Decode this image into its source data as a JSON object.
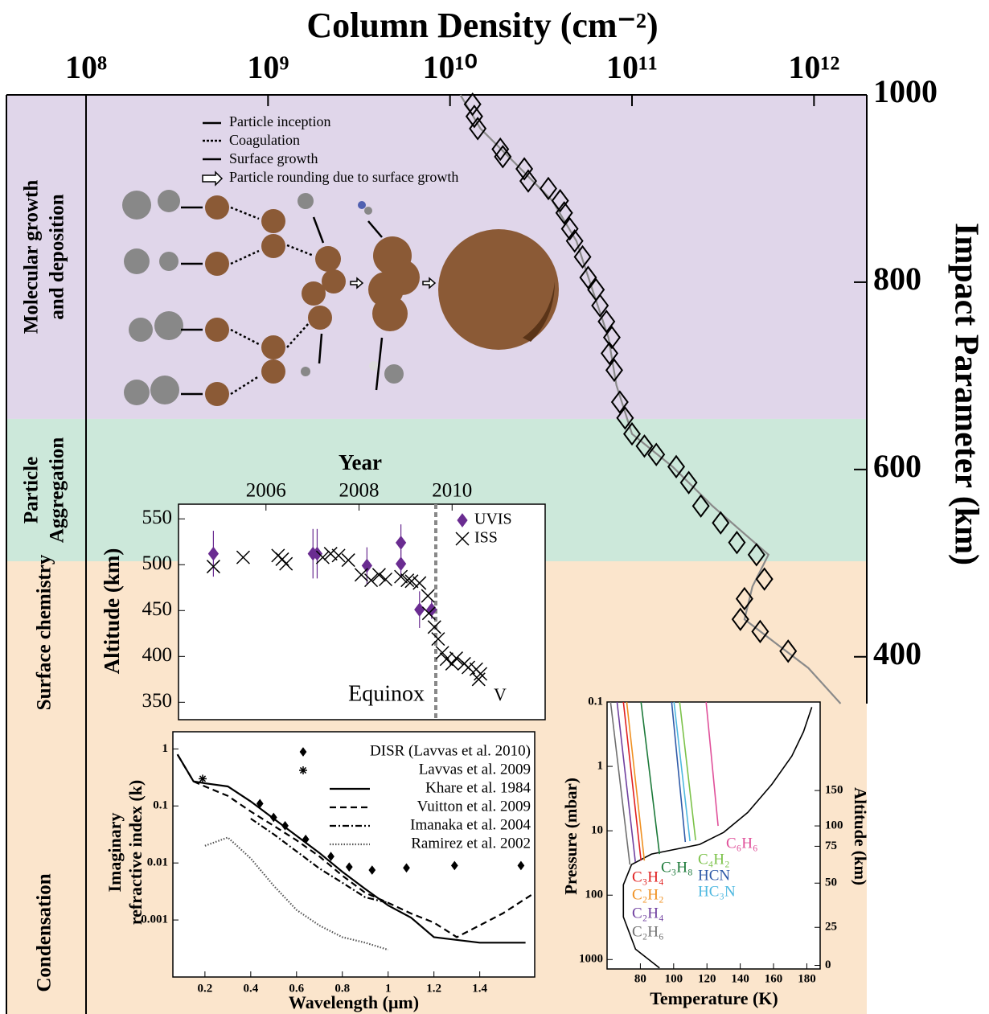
{
  "chart_data": [
    {
      "type": "scatter",
      "title": "Column Density (cm⁻²)",
      "ylabel": "Impact Parameter (km)",
      "xlog": true,
      "xlim": [
        100000000.0,
        1950000000000.0
      ],
      "xticks": [
        {
          "value": 100000000.0,
          "label": "10⁸"
        },
        {
          "value": 1000000000.0,
          "label": "10⁹"
        },
        {
          "value": 10000000000.0,
          "label": "10¹⁰"
        },
        {
          "value": 100000000000.0,
          "label": "10¹¹"
        },
        {
          "value": 1000000000000.0,
          "label": "10¹²"
        }
      ],
      "ylim": [
        350,
        1000
      ],
      "yticks": [
        400,
        600,
        800,
        1000
      ],
      "regions": [
        {
          "label": [
            "Molecular growth",
            "and deposition"
          ],
          "color": "#e0d6ea",
          "range": [
            654,
            1000
          ]
        },
        {
          "label": [
            "Particle",
            "Aggregation"
          ],
          "color": "#cce8da",
          "range": [
            502,
            654
          ]
        },
        {
          "label": [
            "Surface chemistry"
          ],
          "color": "#fbe5cc",
          "range": [
            350,
            502
          ]
        },
        {
          "label": [
            "Condensation"
          ],
          "color": "#fbe5cc"
        }
      ],
      "annotations": [
        "Particle inception",
        "Coagulation",
        "Surface growth",
        "Particle rounding due to surface growth"
      ],
      "series": [
        {
          "mode": "line",
          "color": "#8a8a8a",
          "x": [
            11400000000.0,
            14700000000.0,
            22000000000.0,
            36500000000.0,
            49500000000.0,
            60600000000.0,
            74200000000.0,
            82100000000.0,
            100000000000.0,
            167000000000.0,
            277000000000.0,
            562000000000.0,
            459000000000.0,
            415000000000.0,
            621000000000.0,
            931000000000.0,
            1400000000000.0
          ],
          "values": [
            1000,
            964,
            930,
            887,
            844,
            792,
            741,
            690,
            638,
            603,
            561,
            509,
            475,
            440,
            414,
            388,
            350
          ]
        },
        {
          "mode": "markers",
          "marker": "open-diamond",
          "color": "#000000",
          "x": [
            13300000000.0,
            13600000000.0,
            14200000000.0,
            18900000000.0,
            19500000000.0,
            25600000000.0,
            26900000000.0,
            34700000000.0,
            40300000000.0,
            42400000000.0,
            45500000000.0,
            48400000000.0,
            53500000000.0,
            57400000000.0,
            63400000000.0,
            66700000000.0,
            72400000000.0,
            77500000000.0,
            75200000000.0,
            79900000000.0,
            85700000000.0,
            91600000000.0,
            100000000000.0,
            117000000000.0,
            136000000000.0,
            175000000000.0,
            205000000000.0,
            239000000000.0,
            307000000000.0,
            377000000000.0,
            483000000000.0,
            534000000000.0,
            415000000000.0,
            394000000000.0,
            506000000000.0,
            721000000000.0
          ],
          "values": [
            990,
            977,
            964,
            942,
            934,
            921,
            908,
            900,
            887,
            874,
            857,
            844,
            827,
            805,
            792,
            775,
            758,
            741,
            724,
            706,
            672,
            655,
            638,
            625,
            616,
            603,
            586,
            561,
            543,
            522,
            509,
            483,
            462,
            440,
            427,
            406
          ]
        }
      ]
    },
    {
      "type": "scatter",
      "xlabel": "Year",
      "ylabel": "Altitude (km)",
      "xlim": [
        2004.12,
        2012
      ],
      "xticks": [
        2006,
        2008,
        2010
      ],
      "ylim": [
        331,
        566
      ],
      "yticks": [
        350,
        400,
        450,
        500,
        550
      ],
      "annotations": [
        {
          "text": "Equinox",
          "x": 2009.65
        },
        {
          "text": "V"
        }
      ],
      "series": [
        {
          "name": "UVIS",
          "mode": "markers",
          "marker": "diamond",
          "color": "#6a2c91",
          "x": [
            2004.87,
            2007.01,
            2007.1,
            2008.17,
            2008.9,
            2008.9,
            2009.3,
            2009.56
          ],
          "values": [
            512,
            512,
            512,
            499,
            501,
            524,
            451,
            451
          ],
          "errors": [
            25,
            27,
            27,
            20,
            15,
            20,
            20,
            10
          ]
        },
        {
          "name": "ISS",
          "mode": "markers",
          "marker": "x",
          "color": "#000000",
          "x": [
            2004.87,
            2005.51,
            2006.26,
            2006.35,
            2006.43,
            2007.22,
            2007.39,
            2007.56,
            2007.77,
            2008.05,
            2008.26,
            2008.43,
            2008.57,
            2008.9,
            2009.04,
            2009.13,
            2009.3,
            2009.48,
            2009.5,
            2009.62,
            2009.7,
            2009.79,
            2009.88,
            2010.0,
            2010.09,
            2010.26,
            2010.35,
            2010.52,
            2010.61,
            2010.57
          ],
          "values": [
            498,
            508,
            510,
            506,
            501,
            508,
            512,
            510,
            505,
            489,
            483,
            489,
            484,
            487,
            483,
            482,
            480,
            466,
            447,
            432,
            419,
            404,
            397,
            392,
            398,
            392,
            388,
            386,
            381,
            375
          ]
        }
      ]
    },
    {
      "type": "line",
      "xlabel": "Wavelength (μm)",
      "ylabel": [
        "Imaginary",
        "refractive index (k)"
      ],
      "xlim": [
        0.06,
        1.64
      ],
      "xticks": [
        0.2,
        0.4,
        0.6,
        0.8,
        1.0,
        1.2,
        1.4
      ],
      "ylog": true,
      "ylim": [
        0.0001,
        2
      ],
      "yticks": [
        0.001,
        0.01,
        0.1,
        1
      ],
      "series": [
        {
          "name": "DISR (Lavvas et al. 2010)",
          "mode": "markers",
          "marker": "diamond",
          "color": "#000000",
          "x": [
            0.44,
            0.5,
            0.55,
            0.64,
            0.75,
            0.83,
            0.93,
            1.08,
            1.29,
            1.58
          ],
          "values": [
            0.11,
            0.063,
            0.045,
            0.026,
            0.013,
            0.0085,
            0.0075,
            0.0082,
            0.009,
            0.009
          ]
        },
        {
          "name": "Lavvas et al. 2009",
          "mode": "markers",
          "marker": "star",
          "color": "#000000",
          "x": [
            0.19
          ],
          "values": [
            0.3
          ]
        },
        {
          "name": "Khare et al. 1984",
          "mode": "line",
          "dash": "solid",
          "color": "#000000",
          "x": [
            0.08,
            0.15,
            0.2,
            0.3,
            0.4,
            0.5,
            0.6,
            0.7,
            0.8,
            0.9,
            1.0,
            1.1,
            1.2,
            1.4,
            1.6
          ],
          "values": [
            0.8,
            0.27,
            0.25,
            0.22,
            0.12,
            0.06,
            0.03,
            0.015,
            0.007,
            0.0035,
            0.0018,
            0.0011,
            0.0005,
            0.0004,
            0.0004
          ]
        },
        {
          "name": "Vuitton et al. 2009",
          "mode": "line",
          "dash": "dashed",
          "color": "#000000",
          "x": [
            0.08,
            0.15,
            0.2,
            0.3,
            0.4,
            0.5,
            0.6,
            0.7,
            0.8,
            0.9,
            1.0,
            1.1,
            1.2,
            1.3,
            1.5,
            1.64
          ],
          "values": [
            0.8,
            0.27,
            0.22,
            0.15,
            0.08,
            0.045,
            0.025,
            0.013,
            0.006,
            0.003,
            0.002,
            0.0013,
            0.0009,
            0.0005,
            0.0013,
            0.003
          ]
        },
        {
          "name": "Imanaka et al. 2004",
          "mode": "line",
          "dash": "dashdot",
          "color": "#000000",
          "x": [
            0.4,
            0.5,
            0.6,
            0.7,
            0.8,
            0.9,
            1.0
          ],
          "values": [
            0.06,
            0.032,
            0.016,
            0.008,
            0.0045,
            0.0025,
            0.002
          ]
        },
        {
          "name": "Ramirez et al. 2002",
          "mode": "line",
          "dash": "dotted",
          "color": "#555555",
          "x": [
            0.2,
            0.3,
            0.4,
            0.5,
            0.6,
            0.7,
            0.8,
            0.9,
            1.0
          ],
          "values": [
            0.02,
            0.028,
            0.012,
            0.004,
            0.0015,
            0.0008,
            0.0005,
            0.0004,
            0.0003
          ]
        }
      ]
    },
    {
      "type": "line",
      "xlabel": "Temperature (K)",
      "ylabel": "Pressure (mbar)",
      "y2label": "Altitude (km)",
      "xlim": [
        60,
        188
      ],
      "xticks": [
        80,
        100,
        120,
        140,
        160,
        180
      ],
      "ylog": true,
      "ylim": [
        1400,
        0.1
      ],
      "yticks": [
        0.1,
        1,
        10,
        100,
        1000
      ],
      "altitude_ticks": [
        {
          "altitude": 0,
          "pressure": 1230
        },
        {
          "altitude": 25,
          "pressure": 316
        },
        {
          "altitude": 50,
          "pressure": 65
        },
        {
          "altitude": 75,
          "pressure": 17.4
        },
        {
          "altitude": 100,
          "pressure": 8.4
        },
        {
          "altitude": 150,
          "pressure": 2.37
        }
      ],
      "series": [
        {
          "mode": "line",
          "color": "#000000",
          "x": [
            91.5,
            77.1,
            69.8,
            69.8,
            74.7,
            86.7,
            115.6,
            130,
            144.5,
            159,
            171,
            178,
            183
          ],
          "values": [
            1350,
            690,
            218,
            69,
            33.5,
            23,
            16.3,
            10.6,
            5.2,
            1.9,
            0.69,
            0.29,
            0.12
          ]
        },
        {
          "name": "C₆H₆",
          "mode": "line",
          "color": "#e0509a",
          "x": [
            119.5,
            126.7
          ],
          "values": [
            0.1,
            8.4
          ]
        },
        {
          "name": "C₄H₂",
          "mode": "line",
          "color": "#7cc24a",
          "x": [
            103.6,
            113.2
          ],
          "values": [
            0.1,
            14
          ]
        },
        {
          "name": "HCN",
          "mode": "line",
          "color": "#2f5aa8",
          "x": [
            98.8,
            107
          ],
          "values": [
            0.1,
            14.9
          ]
        },
        {
          "name": "HC₃N",
          "mode": "line",
          "color": "#4fb8e0",
          "x": [
            100.2,
            109.8
          ],
          "values": [
            0.1,
            14.5
          ]
        },
        {
          "name": "C₃H₈",
          "mode": "line",
          "color": "#1d7a3a",
          "x": [
            80.4,
            91.5
          ],
          "values": [
            0.1,
            23
          ]
        },
        {
          "name": "C₃H₄",
          "mode": "line",
          "color": "#e02020",
          "x": [
            69.8,
            80.4
          ],
          "values": [
            0.1,
            29
          ]
        },
        {
          "name": "C₂H₂",
          "mode": "line",
          "color": "#f09020",
          "x": [
            71.8,
            82.4
          ],
          "values": [
            0.1,
            29
          ]
        },
        {
          "name": "C₂H₄",
          "mode": "line",
          "color": "#7040a0",
          "x": [
            66,
            77
          ],
          "values": [
            0.1,
            30.5
          ]
        },
        {
          "name": "C₂H₆",
          "mode": "line",
          "color": "#707070",
          "x": [
            62.1,
            73.7
          ],
          "values": [
            0.1,
            33.5
          ]
        }
      ]
    }
  ]
}
